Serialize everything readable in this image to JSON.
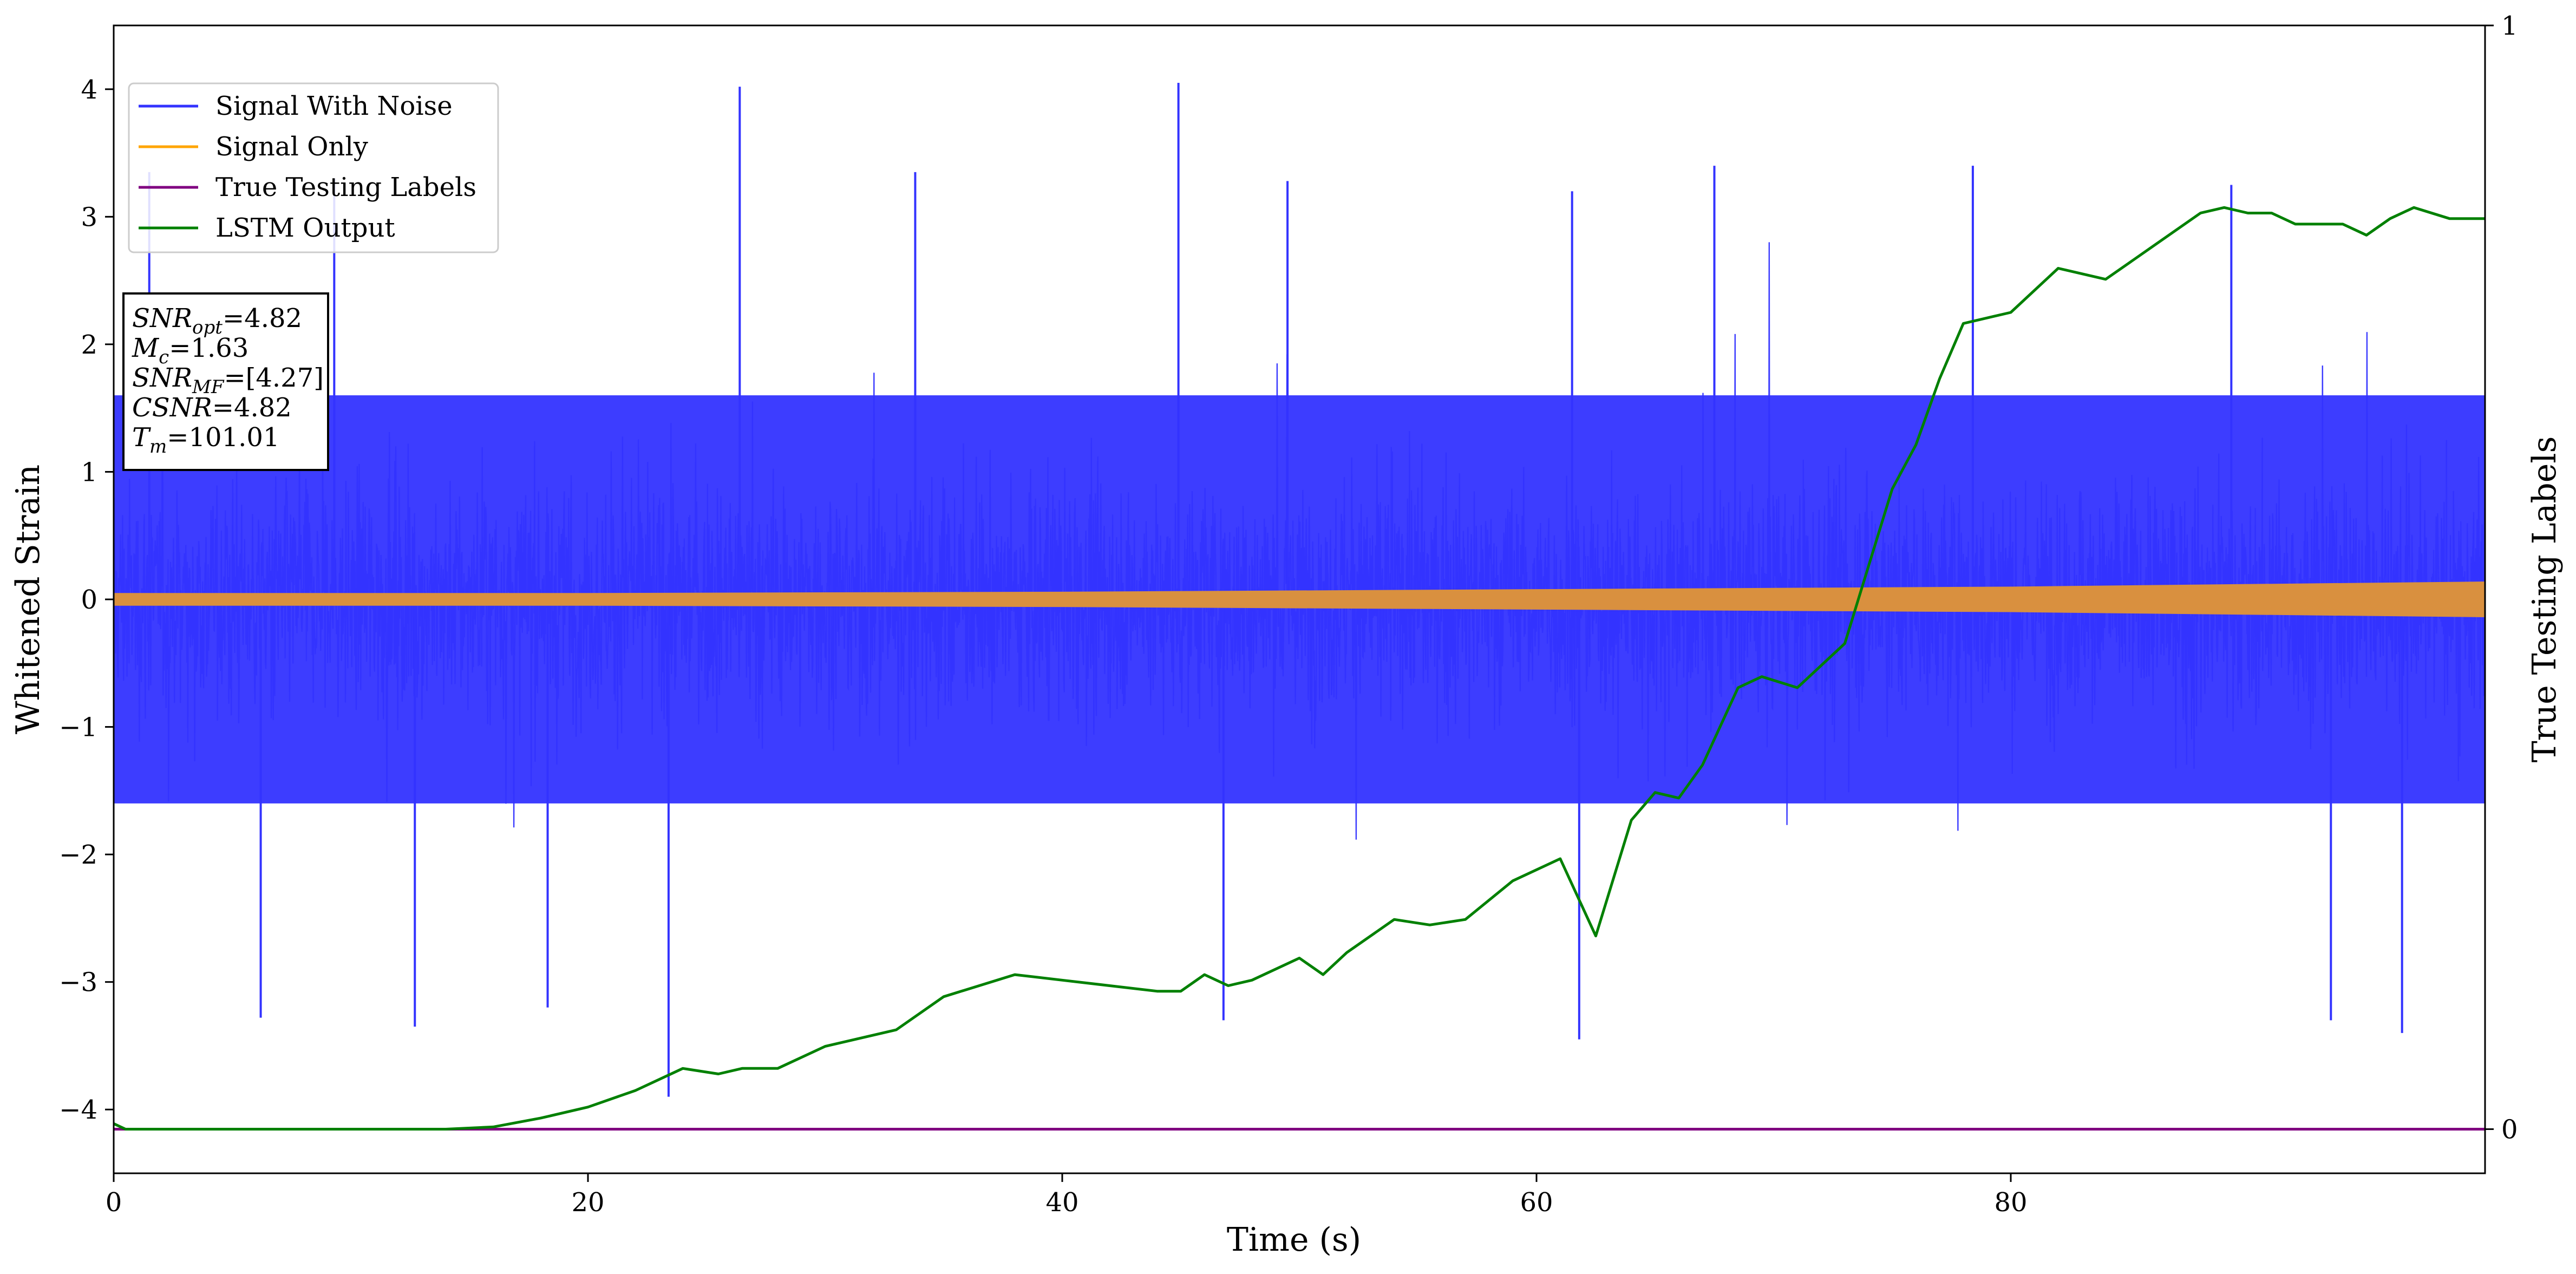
{
  "chart_data": {
    "type": "line",
    "xlabel": "Time (s)",
    "ylabel": "Whitened Strain",
    "y2label": "True Testing Labels",
    "xlim": [
      0,
      100
    ],
    "ylim": [
      -4.5,
      4.5
    ],
    "y2lim": [
      -0.04,
      1.0
    ],
    "xticks": [
      0,
      20,
      40,
      60,
      80
    ],
    "yticks": [
      -4,
      -3,
      -2,
      -1,
      0,
      1,
      2,
      3,
      4
    ],
    "y2ticks": [
      0,
      1
    ],
    "legend_position": "upper-left",
    "series": [
      {
        "name": "Signal With Noise",
        "color": "#3333ff",
        "axis": "left",
        "description_values": {
          "typical_min": -1.6,
          "typical_max": 1.6,
          "peak_max": 4.05,
          "peak_min": -3.9
        },
        "spikes": [
          [
            1.5,
            3.35
          ],
          [
            6.2,
            -3.28
          ],
          [
            9.3,
            3.3
          ],
          [
            12.7,
            -3.35
          ],
          [
            18.3,
            -3.2
          ],
          [
            23.4,
            -3.9
          ],
          [
            26.4,
            4.02
          ],
          [
            33.8,
            3.35
          ],
          [
            44.9,
            4.05
          ],
          [
            46.8,
            -3.3
          ],
          [
            49.5,
            3.28
          ],
          [
            61.5,
            3.2
          ],
          [
            61.8,
            -3.45
          ],
          [
            67.5,
            3.4
          ],
          [
            78.4,
            3.4
          ],
          [
            89.3,
            3.25
          ],
          [
            93.5,
            -3.3
          ],
          [
            96.5,
            -3.4
          ]
        ]
      },
      {
        "name": "Signal Only",
        "color": "#ffa500",
        "axis": "left",
        "amplitude": [
          [
            0,
            0.05
          ],
          [
            20,
            0.05
          ],
          [
            40,
            0.06
          ],
          [
            60,
            0.08
          ],
          [
            80,
            0.1
          ],
          [
            100,
            0.14
          ]
        ]
      },
      {
        "name": "True Testing Labels",
        "color": "#800080",
        "axis": "right",
        "x": [
          0,
          100
        ],
        "y": [
          0,
          0
        ]
      },
      {
        "name": "LSTM Output",
        "color": "#008000",
        "axis": "right",
        "x": [
          0,
          0.5,
          1,
          14,
          16,
          18,
          20,
          22,
          24,
          25.5,
          26.5,
          28,
          30,
          33,
          35,
          38,
          40,
          42,
          44,
          45,
          46,
          47,
          48,
          50,
          51,
          52,
          54,
          55.5,
          57,
          59,
          61,
          62.5,
          64,
          65,
          66,
          67,
          68.5,
          69.5,
          71,
          73,
          74,
          75,
          76,
          77,
          78,
          79,
          80,
          82,
          84,
          85,
          86,
          88,
          89,
          90,
          91,
          92,
          93,
          94,
          95,
          96,
          97,
          98.5,
          100
        ],
        "y": [
          0.005,
          0,
          0,
          0,
          0.002,
          0.01,
          0.02,
          0.035,
          0.055,
          0.05,
          0.055,
          0.055,
          0.075,
          0.09,
          0.12,
          0.14,
          0.135,
          0.13,
          0.125,
          0.125,
          0.14,
          0.13,
          0.135,
          0.155,
          0.14,
          0.16,
          0.19,
          0.185,
          0.19,
          0.225,
          0.245,
          0.175,
          0.28,
          0.305,
          0.3,
          0.33,
          0.4,
          0.41,
          0.4,
          0.44,
          0.51,
          0.58,
          0.62,
          0.68,
          0.73,
          0.735,
          0.74,
          0.78,
          0.77,
          0.785,
          0.8,
          0.83,
          0.835,
          0.83,
          0.83,
          0.82,
          0.82,
          0.82,
          0.81,
          0.825,
          0.835,
          0.825,
          0.825
        ]
      }
    ],
    "annotation": [
      {
        "main": "SNR",
        "sub": "opt",
        "italic": true,
        "rest": "=4.82"
      },
      {
        "main": "M",
        "sub": "c",
        "italic": true,
        "rest": "=1.63"
      },
      {
        "main": "SNR",
        "sub": "MF",
        "italic": true,
        "rest": "=[4.27]"
      },
      {
        "main": "CSNR",
        "sub": "",
        "italic": true,
        "rest": "=4.82"
      },
      {
        "main": "T",
        "sub": "m",
        "italic": true,
        "rest": "=101.01"
      }
    ]
  }
}
